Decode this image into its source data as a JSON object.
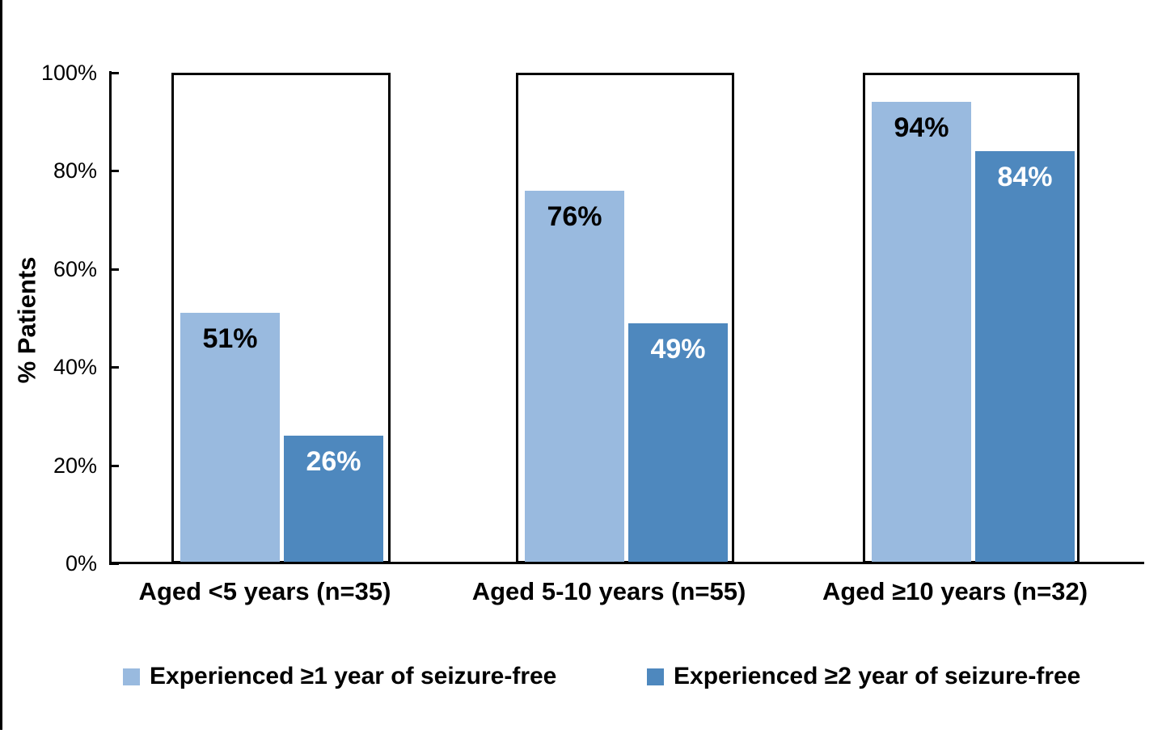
{
  "figure": {
    "ylabel": "% Patients",
    "background": "#ffffff",
    "axis_color": "#000000"
  },
  "chart_data": {
    "type": "bar",
    "title": "",
    "xlabel": "",
    "ylabel": "% Patients",
    "ylim": [
      0,
      100
    ],
    "ytick_values": [
      0,
      20,
      40,
      60,
      80,
      100
    ],
    "yticks": [
      "0%",
      "20%",
      "40%",
      "60%",
      "80%",
      "100%"
    ],
    "grid": false,
    "legend_position": "bottom",
    "categories": [
      "Aged <5 years (n=35)",
      "Aged 5-10 years (n=55)",
      "Aged ≥10 years (n=32)"
    ],
    "series": [
      {
        "name": "Experienced ≥1 year of seizure-free",
        "color": "#99BADF",
        "values": [
          51,
          76,
          94
        ],
        "labels": [
          "51%",
          "76%",
          "94%"
        ],
        "label_color": "#000000"
      },
      {
        "name": "Experienced ≥2 year of seizure-free",
        "color": "#4E88BE",
        "values": [
          26,
          49,
          84
        ],
        "labels": [
          "26%",
          "49%",
          "84%"
        ],
        "label_color": "#FFFFFF"
      }
    ]
  }
}
